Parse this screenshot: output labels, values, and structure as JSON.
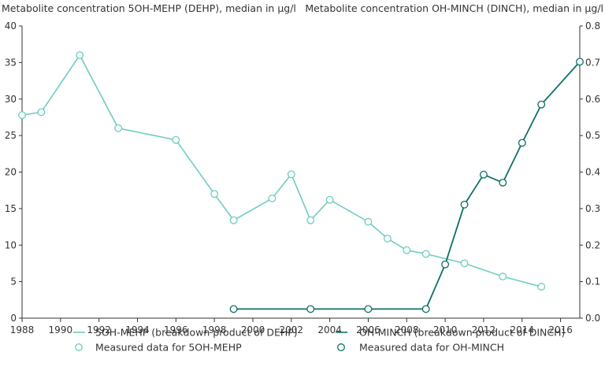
{
  "chart_data": {
    "type": "line",
    "left_axis_title": "Metabolite concentration 5OH-MEHP (DEHP), median in µg/l",
    "right_axis_title": "Metabolite concentration OH-MINCH (DINCH), median in µg/l",
    "xlim": [
      1988,
      2017
    ],
    "x_ticks": [
      1988,
      1990,
      1992,
      1994,
      1996,
      1998,
      2000,
      2002,
      2004,
      2006,
      2008,
      2010,
      2012,
      2014,
      2016
    ],
    "x_tick_labels": [
      "1988",
      "1990",
      "1992",
      "1994",
      "1996",
      "1998",
      "2000",
      "2002",
      "2004",
      "2006",
      "2008",
      "2010",
      "2012",
      "2014",
      "2016"
    ],
    "ylim_left": [
      0,
      40
    ],
    "y_ticks_left": [
      0,
      5,
      10,
      15,
      20,
      25,
      30,
      35,
      40
    ],
    "y_tick_labels_left": [
      "0",
      "5",
      "10",
      "15",
      "20",
      "25",
      "30",
      "35",
      "40"
    ],
    "ylim_right": [
      0,
      0.8
    ],
    "y_ticks_right": [
      0,
      0.1,
      0.2,
      0.3,
      0.4,
      0.5,
      0.6,
      0.7,
      0.8
    ],
    "y_tick_labels_right": [
      "0.0",
      "0.1",
      "0.2",
      "0.3",
      "0.4",
      "0.5",
      "0.6",
      "0.7",
      "0.8"
    ],
    "grid": false,
    "legend_position": "bottom",
    "series": [
      {
        "name": "5OH-MEHP (breakdown product of DEHP)",
        "marker_name": "Measured data for 5OH-MEHP",
        "axis": "left",
        "color": "#6dcdc0",
        "x": [
          1988,
          1989,
          1991,
          1993,
          1996,
          1998,
          1999,
          2001,
          2002,
          2003,
          2004,
          2006,
          2007,
          2008,
          2009,
          2011,
          2013,
          2015
        ],
        "y": [
          27.8,
          28.2,
          36.0,
          26.0,
          24.4,
          17.0,
          13.4,
          16.4,
          19.7,
          13.4,
          16.2,
          13.2,
          10.9,
          9.3,
          8.8,
          7.5,
          5.7,
          4.3
        ]
      },
      {
        "name": "OH-MINCH (breakdown product of DINCH)",
        "marker_name": "Measured data for OH-MINCH",
        "axis": "right",
        "color": "#0e7065",
        "x": [
          1999,
          2003,
          2006,
          2009,
          2010,
          2011,
          2012,
          2013,
          2014,
          2015,
          2017
        ],
        "y": [
          0.025,
          0.025,
          0.025,
          0.025,
          0.147,
          0.311,
          0.393,
          0.371,
          0.48,
          0.585,
          0.702
        ]
      }
    ]
  }
}
